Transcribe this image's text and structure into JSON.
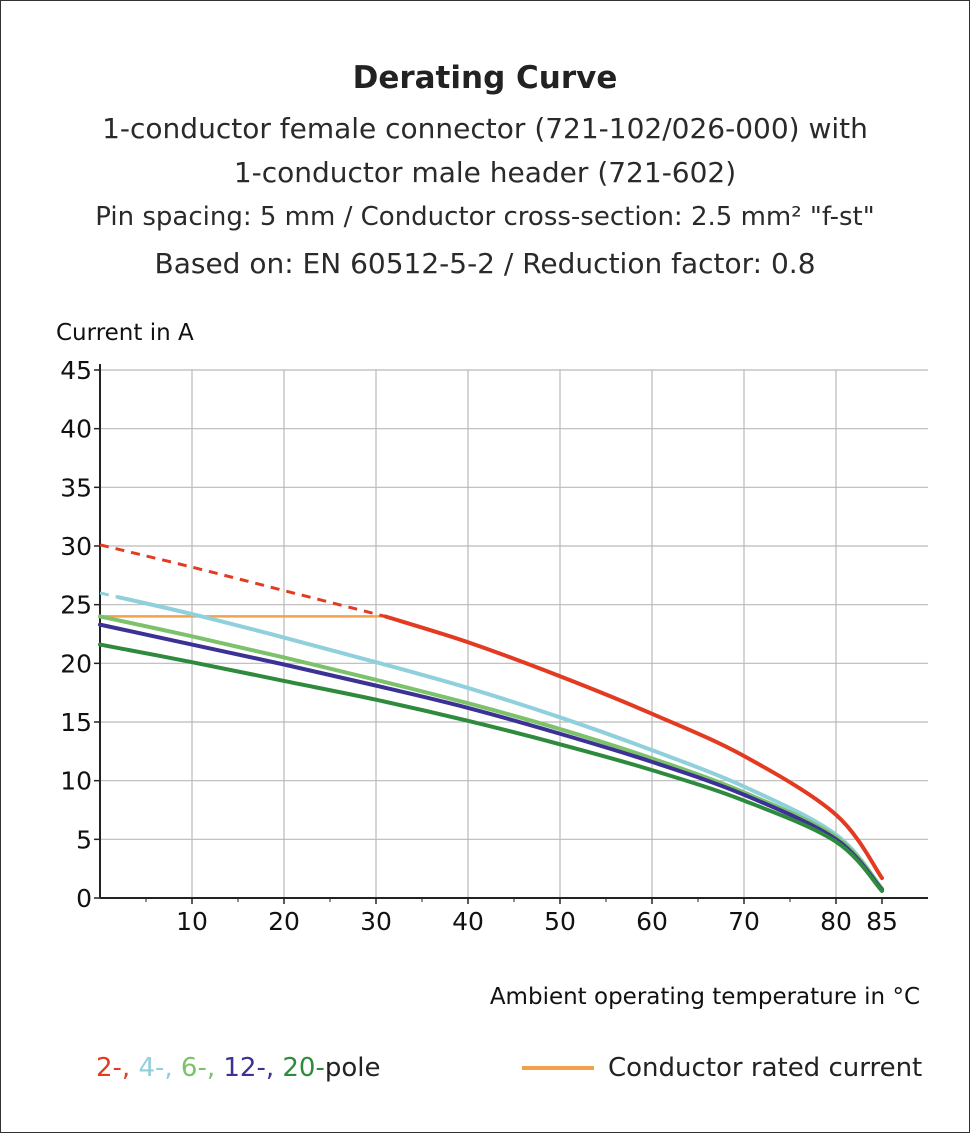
{
  "chart_data": {
    "type": "line",
    "title": "Derating Curve",
    "subtitles": [
      "1-conductor female connector (721-102/026-000) with",
      "1-conductor male header (721-602)",
      "Pin spacing: 5 mm / Conductor cross-section: 2.5 mm² \"f-st\"",
      "Based on: EN 60512-5-2 / Reduction factor: 0.8"
    ],
    "xlabel": "Ambient operating temperature in °C",
    "ylabel": "Current in A",
    "xlim": [
      0,
      90
    ],
    "ylim": [
      0,
      45
    ],
    "x_ticks": [
      10,
      20,
      30,
      40,
      50,
      60,
      70,
      80,
      85
    ],
    "y_ticks": [
      0,
      5,
      10,
      15,
      20,
      25,
      30,
      35,
      40,
      45
    ],
    "grid": true,
    "series": [
      {
        "name": "2-",
        "color": "#e23b22",
        "dashed_until_x": 31,
        "x": [
          0,
          10,
          20,
          31,
          40,
          50,
          60,
          70,
          80,
          85
        ],
        "y": [
          30.1,
          28.2,
          26.2,
          24.0,
          21.8,
          18.9,
          15.7,
          12.1,
          7.1,
          1.7
        ]
      },
      {
        "name": "4-",
        "color": "#8fd0dc",
        "dashed_until_x": 2,
        "x": [
          0,
          10,
          20,
          30,
          40,
          50,
          60,
          70,
          80,
          85
        ],
        "y": [
          26.0,
          24.2,
          22.2,
          20.1,
          17.9,
          15.4,
          12.6,
          9.5,
          5.4,
          0.8
        ]
      },
      {
        "name": "6-",
        "color": "#7cc26a",
        "x": [
          0,
          10,
          20,
          30,
          40,
          50,
          60,
          70,
          80,
          85
        ],
        "y": [
          24.0,
          22.3,
          20.5,
          18.6,
          16.6,
          14.4,
          11.9,
          9.0,
          5.2,
          0.8
        ]
      },
      {
        "name": "12-",
        "color": "#3c3296",
        "x": [
          0,
          10,
          20,
          30,
          40,
          50,
          60,
          70,
          80,
          85
        ],
        "y": [
          23.3,
          21.6,
          19.9,
          18.1,
          16.2,
          14.0,
          11.6,
          8.8,
          5.0,
          0.7
        ]
      },
      {
        "name": "20-",
        "color": "#2e8a3c",
        "x": [
          0,
          10,
          20,
          30,
          40,
          50,
          60,
          70,
          80,
          85
        ],
        "y": [
          21.6,
          20.1,
          18.5,
          16.9,
          15.1,
          13.1,
          10.9,
          8.3,
          4.8,
          0.6
        ]
      },
      {
        "name": "Conductor rated current",
        "color": "#f2a24c",
        "x": [
          0,
          31
        ],
        "y": [
          24.0,
          24.0
        ]
      }
    ]
  },
  "legend": {
    "poles": [
      {
        "text": "2-,",
        "color": "#e23b22"
      },
      {
        "text": " 4-,",
        "color": "#8fd0dc"
      },
      {
        "text": " 6-,",
        "color": "#7cc26a"
      },
      {
        "text": " 12-,",
        "color": "#3c3296"
      },
      {
        "text": " 20-",
        "color": "#2e8a3c"
      },
      {
        "text": "pole",
        "color": "#222222"
      }
    ],
    "rated_label": "Conductor rated current",
    "rated_color": "#f2a24c"
  }
}
